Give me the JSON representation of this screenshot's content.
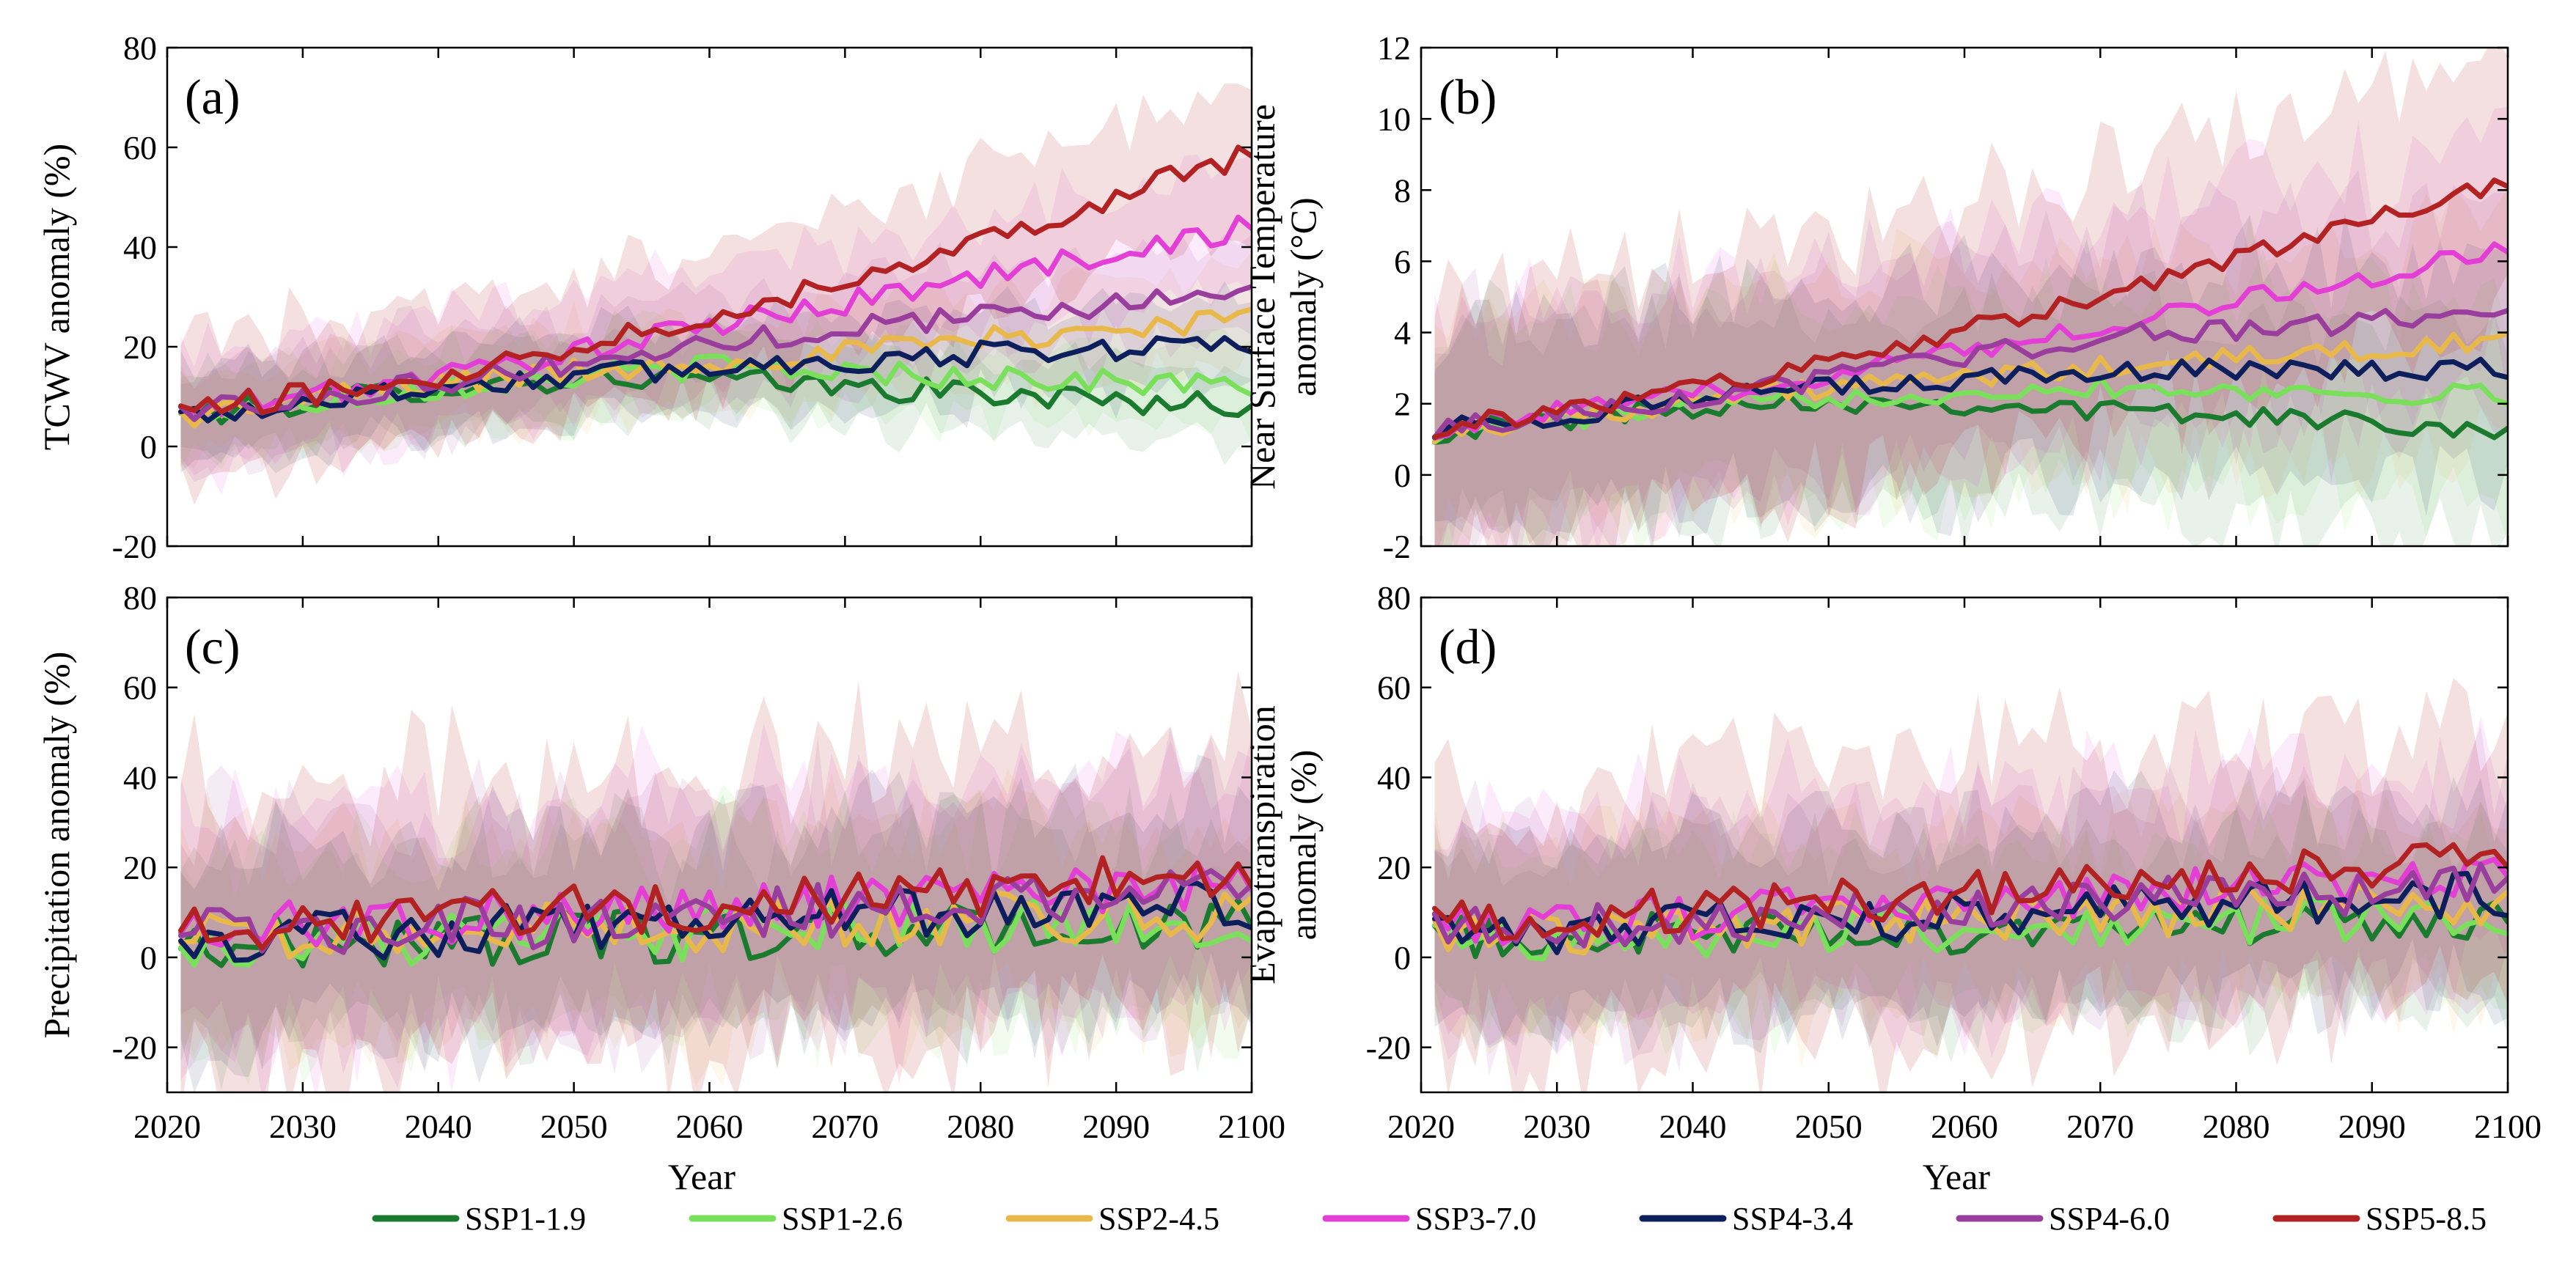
{
  "figure": {
    "legend_label": "Year",
    "legend": [
      {
        "key": "ssp119",
        "label": "SSP1-1.9",
        "color": "#1a7a2e"
      },
      {
        "key": "ssp126",
        "label": "SSP1-2.6",
        "color": "#7ae05c"
      },
      {
        "key": "ssp245",
        "label": "SSP2-4.5",
        "color": "#e8b94a"
      },
      {
        "key": "ssp370",
        "label": "SSP3-7.0",
        "color": "#e33fd6"
      },
      {
        "key": "ssp434",
        "label": "SSP4-3.4",
        "color": "#0c1f5c"
      },
      {
        "key": "ssp460",
        "label": "SSP4-6.0",
        "color": "#9a3e9e"
      },
      {
        "key": "ssp585",
        "label": "SSP5-8.5",
        "color": "#b22222"
      }
    ]
  },
  "chart_data": [
    {
      "id": "a",
      "type": "line",
      "panel_label": "(a)",
      "xlabel": "Year",
      "ylabel": "TCWV anomaly (%)",
      "ylabel_lines": [
        "TCWV anomaly (%)"
      ],
      "xlim": [
        2020,
        2100
      ],
      "ylim": [
        -20,
        80
      ],
      "xticks": [
        2020,
        2030,
        2040,
        2050,
        2060,
        2070,
        2080,
        2090,
        2100
      ],
      "yticks": [
        -20,
        0,
        20,
        40,
        60,
        80
      ],
      "show_xtick_labels": false,
      "series_start": 2021,
      "series_end": 2100,
      "noise": 2.5,
      "series": [
        {
          "key": "ssp119",
          "name": "SSP1-1.9",
          "anchors": [
            [
              2021,
              6
            ],
            [
              2040,
              12
            ],
            [
              2055,
              14
            ],
            [
              2100,
              8
            ]
          ],
          "band": 8
        },
        {
          "key": "ssp126",
          "name": "SSP1-2.6",
          "anchors": [
            [
              2021,
              6
            ],
            [
              2040,
              12
            ],
            [
              2060,
              16
            ],
            [
              2100,
              12
            ]
          ],
          "band": 8
        },
        {
          "key": "ssp245",
          "name": "SSP2-4.5",
          "anchors": [
            [
              2021,
              6
            ],
            [
              2040,
              13
            ],
            [
              2070,
              19
            ],
            [
              2100,
              26
            ]
          ],
          "band": 9
        },
        {
          "key": "ssp370",
          "name": "SSP3-7.0",
          "anchors": [
            [
              2021,
              7
            ],
            [
              2040,
              14
            ],
            [
              2070,
              29
            ],
            [
              2100,
              44
            ]
          ],
          "band": 12
        },
        {
          "key": "ssp434",
          "name": "SSP4-3.4",
          "anchors": [
            [
              2021,
              6
            ],
            [
              2040,
              12
            ],
            [
              2060,
              16
            ],
            [
              2100,
              21
            ]
          ],
          "band": 9
        },
        {
          "key": "ssp460",
          "name": "SSP4-6.0",
          "anchors": [
            [
              2021,
              7
            ],
            [
              2040,
              13
            ],
            [
              2070,
              24
            ],
            [
              2100,
              31
            ]
          ],
          "band": 10
        },
        {
          "key": "ssp585",
          "name": "SSP5-8.5",
          "anchors": [
            [
              2021,
              7
            ],
            [
              2040,
              14
            ],
            [
              2070,
              33
            ],
            [
              2100,
              59
            ]
          ],
          "band": 14
        }
      ]
    },
    {
      "id": "b",
      "type": "line",
      "panel_label": "(b)",
      "xlabel": "Year",
      "ylabel": "Near Surface Temperature anomaly (°C)",
      "ylabel_lines": [
        "Near Surface Temperature",
        "anomaly (°C)"
      ],
      "xlim": [
        2020,
        2100
      ],
      "ylim": [
        -2,
        12
      ],
      "xticks": [
        2020,
        2030,
        2040,
        2050,
        2060,
        2070,
        2080,
        2090,
        2100
      ],
      "yticks": [
        -2,
        0,
        2,
        4,
        6,
        8,
        10,
        12
      ],
      "show_xtick_labels": false,
      "series_start": 2021,
      "series_end": 2100,
      "noise": 0.3,
      "series": [
        {
          "key": "ssp119",
          "name": "SSP1-1.9",
          "anchors": [
            [
              2021,
              1.2
            ],
            [
              2045,
              2.1
            ],
            [
              2060,
              2.0
            ],
            [
              2100,
              1.3
            ]
          ],
          "band": 2.8
        },
        {
          "key": "ssp126",
          "name": "SSP1-2.6",
          "anchors": [
            [
              2021,
              1.2
            ],
            [
              2045,
              2.1
            ],
            [
              2070,
              2.5
            ],
            [
              2100,
              2.2
            ]
          ],
          "band": 2.8
        },
        {
          "key": "ssp245",
          "name": "SSP2-4.5",
          "anchors": [
            [
              2021,
              1.2
            ],
            [
              2045,
              2.3
            ],
            [
              2070,
              3.0
            ],
            [
              2100,
              3.8
            ]
          ],
          "band": 3.0
        },
        {
          "key": "ssp370",
          "name": "SSP3-7.0",
          "anchors": [
            [
              2021,
              1.3
            ],
            [
              2045,
              2.5
            ],
            [
              2070,
              4.2
            ],
            [
              2100,
              6.3
            ]
          ],
          "band": 3.2
        },
        {
          "key": "ssp434",
          "name": "SSP4-3.4",
          "anchors": [
            [
              2021,
              1.3
            ],
            [
              2045,
              2.3
            ],
            [
              2070,
              2.9
            ],
            [
              2100,
              3.0
            ]
          ],
          "band": 3.0
        },
        {
          "key": "ssp460",
          "name": "SSP4-6.0",
          "anchors": [
            [
              2021,
              1.3
            ],
            [
              2045,
              2.4
            ],
            [
              2070,
              3.9
            ],
            [
              2100,
              4.5
            ]
          ],
          "band": 3.0
        },
        {
          "key": "ssp585",
          "name": "SSP5-8.5",
          "anchors": [
            [
              2021,
              1.3
            ],
            [
              2045,
              2.7
            ],
            [
              2070,
              5.0
            ],
            [
              2100,
              8.2
            ]
          ],
          "band": 3.6
        }
      ]
    },
    {
      "id": "c",
      "type": "line",
      "panel_label": "(c)",
      "xlabel": "Year",
      "ylabel": "Precipitation anomaly (%)",
      "ylabel_lines": [
        "Precipitation anomaly (%)"
      ],
      "xlim": [
        2020,
        2100
      ],
      "ylim": [
        -30,
        80
      ],
      "xticks": [
        2020,
        2030,
        2040,
        2050,
        2060,
        2070,
        2080,
        2090,
        2100
      ],
      "yticks": [
        -20,
        0,
        20,
        40,
        60,
        80
      ],
      "show_xtick_labels": true,
      "series_start": 2021,
      "series_end": 2100,
      "noise": 6,
      "series": [
        {
          "key": "ssp119",
          "name": "SSP1-1.9",
          "anchors": [
            [
              2021,
              3
            ],
            [
              2100,
              7
            ]
          ],
          "band": 20
        },
        {
          "key": "ssp126",
          "name": "SSP1-2.6",
          "anchors": [
            [
              2021,
              3
            ],
            [
              2100,
              8
            ]
          ],
          "band": 20
        },
        {
          "key": "ssp245",
          "name": "SSP2-4.5",
          "anchors": [
            [
              2021,
              4
            ],
            [
              2100,
              10
            ]
          ],
          "band": 22
        },
        {
          "key": "ssp370",
          "name": "SSP3-7.0",
          "anchors": [
            [
              2021,
              6
            ],
            [
              2100,
              16
            ]
          ],
          "band": 26
        },
        {
          "key": "ssp434",
          "name": "SSP4-3.4",
          "anchors": [
            [
              2021,
              4
            ],
            [
              2100,
              12
            ]
          ],
          "band": 22
        },
        {
          "key": "ssp460",
          "name": "SSP4-6.0",
          "anchors": [
            [
              2021,
              5
            ],
            [
              2100,
              14
            ]
          ],
          "band": 24
        },
        {
          "key": "ssp585",
          "name": "SSP5-8.5",
          "anchors": [
            [
              2021,
              6
            ],
            [
              2100,
              18
            ]
          ],
          "band": 32
        }
      ]
    },
    {
      "id": "d",
      "type": "line",
      "panel_label": "(d)",
      "xlabel": "Year",
      "ylabel": "Evapotranspiration anomaly (%)",
      "ylabel_lines": [
        "Evapotranspiration",
        "anomaly (%)"
      ],
      "xlim": [
        2020,
        2100
      ],
      "ylim": [
        -30,
        80
      ],
      "xticks": [
        2020,
        2030,
        2040,
        2050,
        2060,
        2070,
        2080,
        2090,
        2100
      ],
      "yticks": [
        -20,
        0,
        20,
        40,
        60,
        80
      ],
      "show_xtick_labels": true,
      "series_start": 2021,
      "series_end": 2100,
      "noise": 5,
      "series": [
        {
          "key": "ssp119",
          "name": "SSP1-1.9",
          "anchors": [
            [
              2021,
              4
            ],
            [
              2100,
              8
            ]
          ],
          "band": 18
        },
        {
          "key": "ssp126",
          "name": "SSP1-2.6",
          "anchors": [
            [
              2021,
              4
            ],
            [
              2100,
              9
            ]
          ],
          "band": 18
        },
        {
          "key": "ssp245",
          "name": "SSP2-4.5",
          "anchors": [
            [
              2021,
              5
            ],
            [
              2100,
              12
            ]
          ],
          "band": 20
        },
        {
          "key": "ssp370",
          "name": "SSP3-7.0",
          "anchors": [
            [
              2021,
              6
            ],
            [
              2100,
              19
            ]
          ],
          "band": 24
        },
        {
          "key": "ssp434",
          "name": "SSP4-3.4",
          "anchors": [
            [
              2021,
              5
            ],
            [
              2100,
              14
            ]
          ],
          "band": 20
        },
        {
          "key": "ssp460",
          "name": "SSP4-6.0",
          "anchors": [
            [
              2021,
              6
            ],
            [
              2100,
              16
            ]
          ],
          "band": 22
        },
        {
          "key": "ssp585",
          "name": "SSP5-8.5",
          "anchors": [
            [
              2021,
              7
            ],
            [
              2100,
              22
            ]
          ],
          "band": 30
        }
      ]
    }
  ]
}
